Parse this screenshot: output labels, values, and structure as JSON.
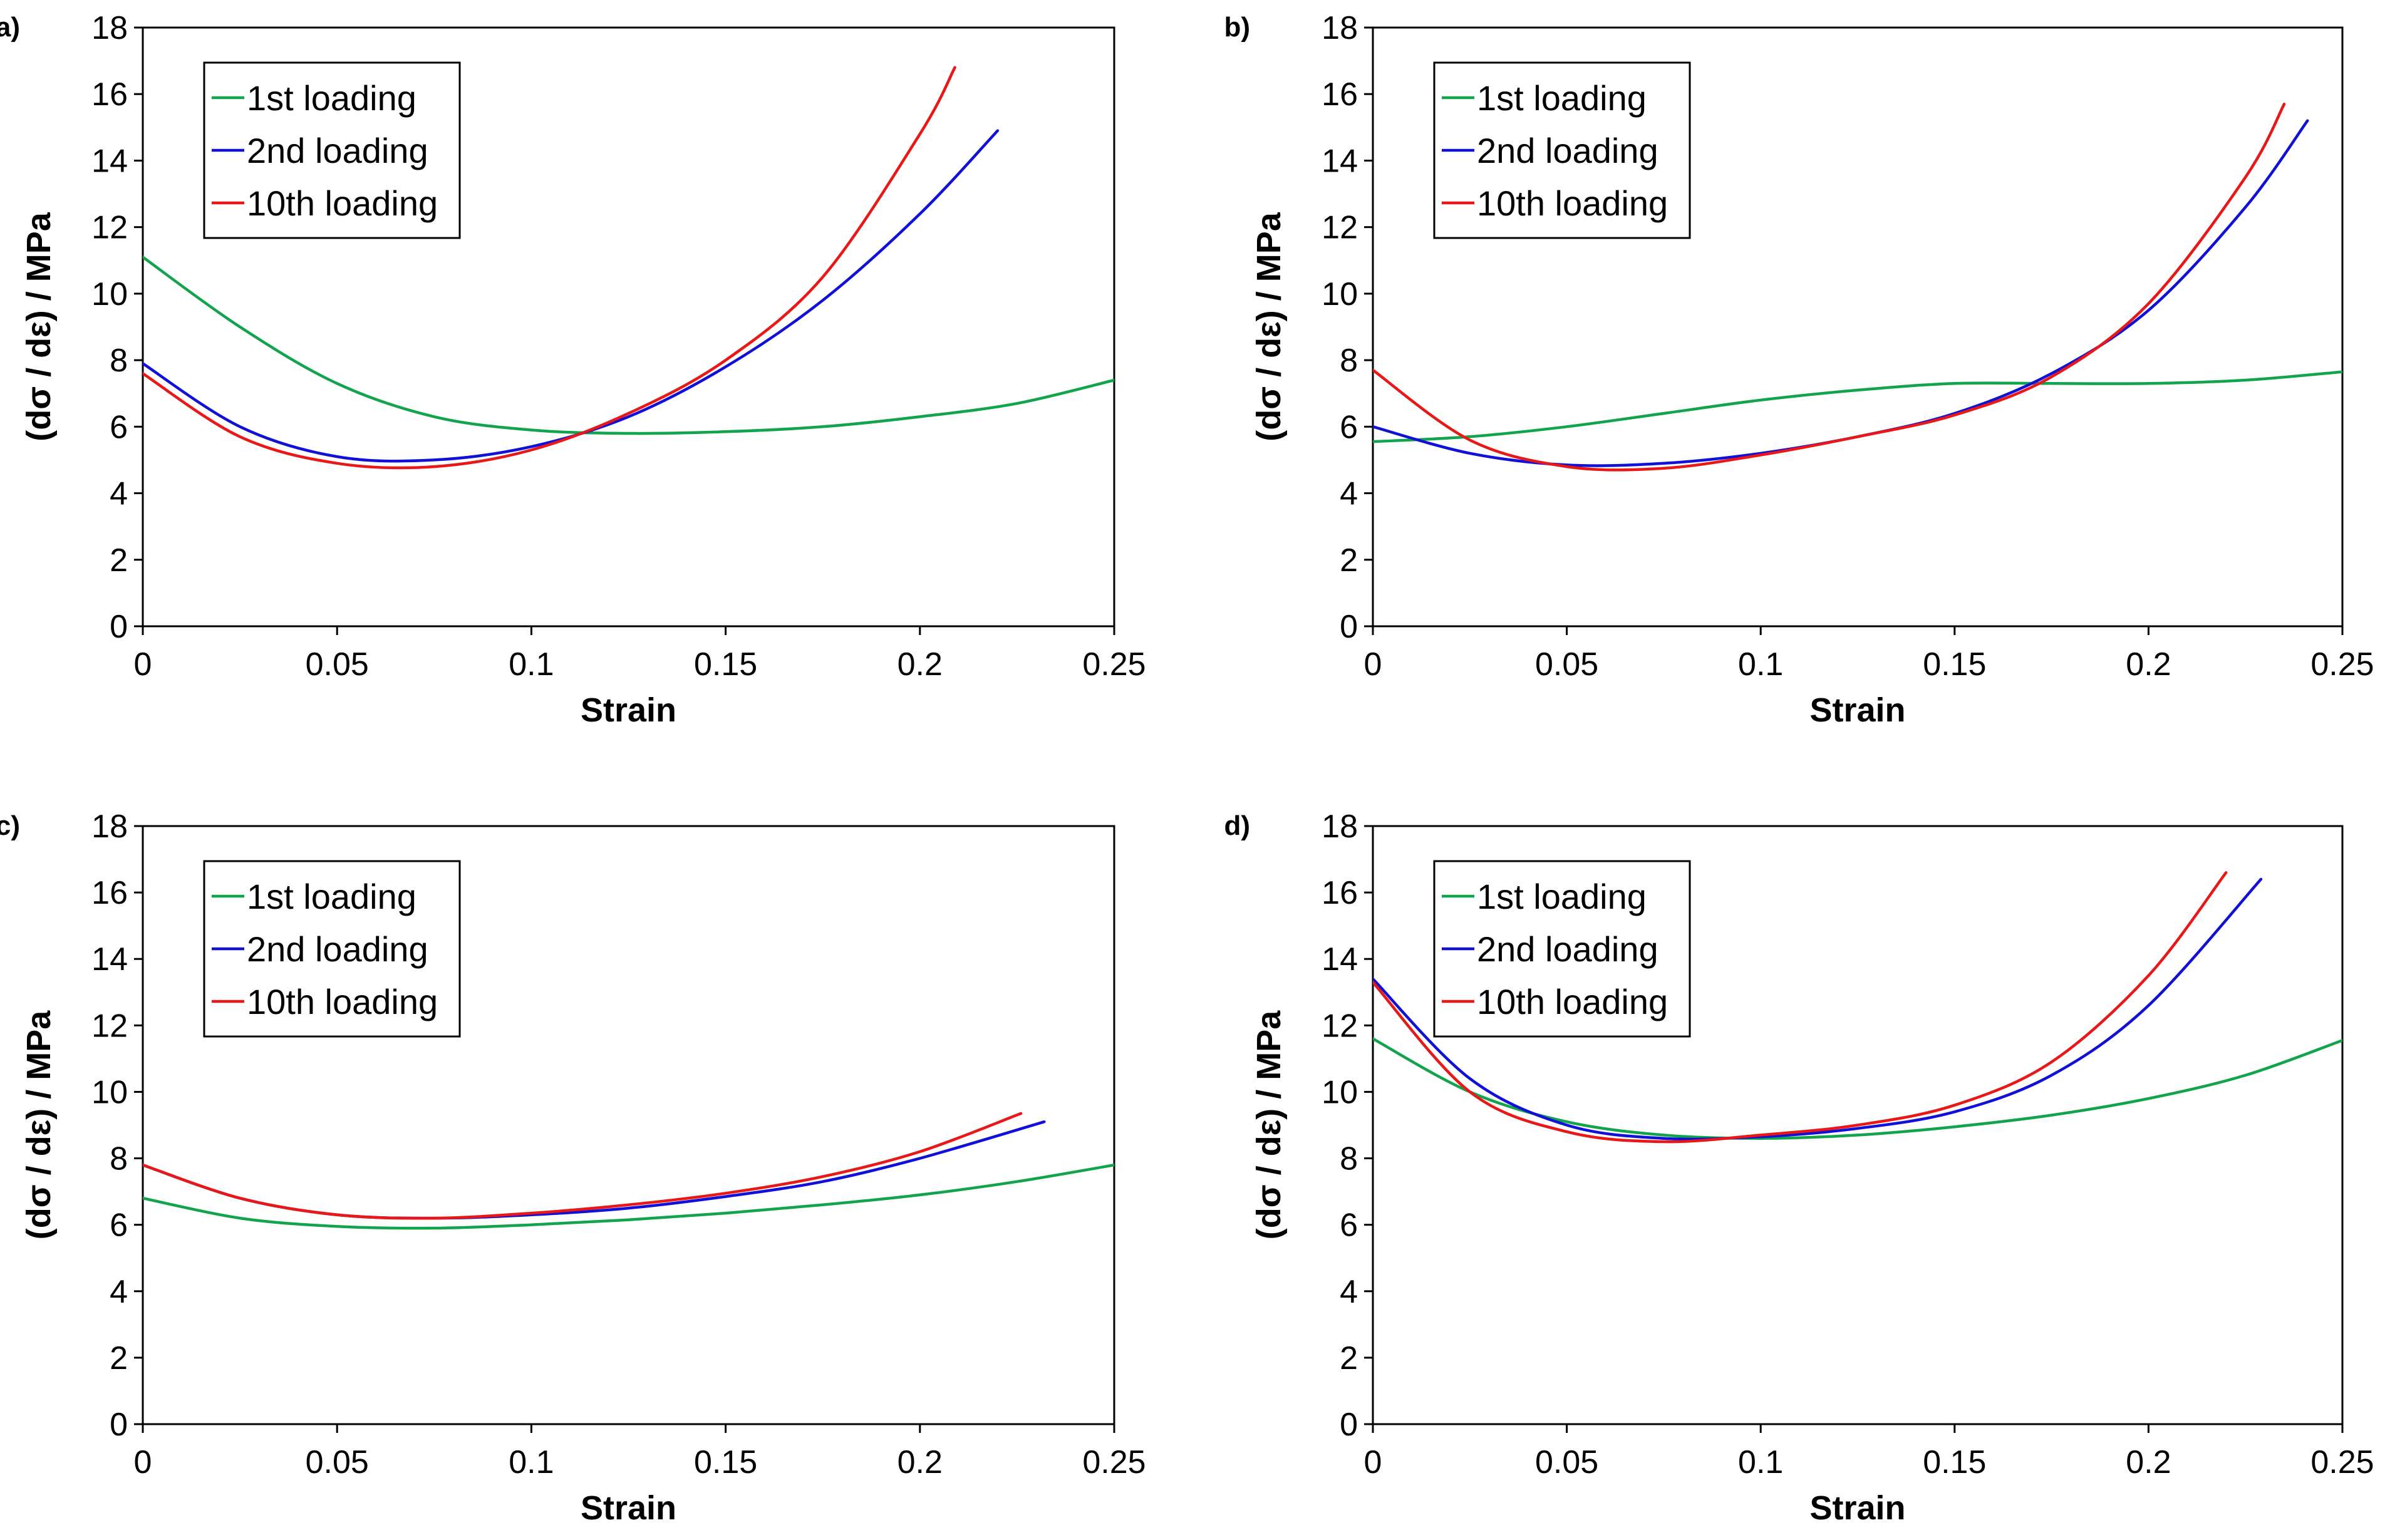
{
  "colors": {
    "first": "#12a44c",
    "second": "#1010d6",
    "tenth": "#e81818"
  },
  "chart_data": [
    {
      "type": "line",
      "panel_label": "a)",
      "xlabel": "Strain",
      "ylabel": "(dσ / dε) / MPa",
      "xlim": [
        0,
        0.25
      ],
      "ylim": [
        0,
        18
      ],
      "xticks": [
        "0",
        "0.05",
        "0.1",
        "0.15",
        "0.2",
        "0.25"
      ],
      "yticks": [
        "0",
        "2",
        "4",
        "6",
        "8",
        "10",
        "12",
        "14",
        "16",
        "18"
      ],
      "legend_position": "top-left",
      "grid": false,
      "series": [
        {
          "name": "1st loading",
          "color": "first",
          "x": [
            0,
            0.025,
            0.05,
            0.075,
            0.1,
            0.125,
            0.15,
            0.175,
            0.2,
            0.225,
            0.25
          ],
          "y": [
            11.1,
            9.0,
            7.3,
            6.3,
            5.9,
            5.8,
            5.85,
            6.0,
            6.3,
            6.7,
            7.4
          ]
        },
        {
          "name": "2nd loading",
          "color": "second",
          "x": [
            0,
            0.025,
            0.05,
            0.075,
            0.1,
            0.125,
            0.15,
            0.175,
            0.2,
            0.22
          ],
          "y": [
            7.9,
            6.0,
            5.1,
            5.0,
            5.4,
            6.3,
            7.8,
            9.8,
            12.4,
            14.9
          ]
        },
        {
          "name": "10th loading",
          "color": "tenth",
          "x": [
            0,
            0.025,
            0.05,
            0.075,
            0.1,
            0.125,
            0.15,
            0.175,
            0.2,
            0.209
          ],
          "y": [
            7.6,
            5.7,
            4.9,
            4.8,
            5.3,
            6.4,
            8.0,
            10.5,
            14.8,
            16.8
          ]
        }
      ]
    },
    {
      "type": "line",
      "panel_label": "b)",
      "xlabel": "Strain",
      "ylabel": "(dσ / dε) / MPa",
      "xlim": [
        0,
        0.25
      ],
      "ylim": [
        0,
        18
      ],
      "xticks": [
        "0",
        "0.05",
        "0.1",
        "0.15",
        "0.2",
        "0.25"
      ],
      "yticks": [
        "0",
        "2",
        "4",
        "6",
        "8",
        "10",
        "12",
        "14",
        "16",
        "18"
      ],
      "legend_position": "top-left",
      "grid": false,
      "series": [
        {
          "name": "1st loading",
          "color": "first",
          "x": [
            0,
            0.025,
            0.05,
            0.075,
            0.1,
            0.125,
            0.15,
            0.175,
            0.2,
            0.225,
            0.25
          ],
          "y": [
            5.55,
            5.7,
            6.0,
            6.4,
            6.8,
            7.1,
            7.3,
            7.3,
            7.3,
            7.4,
            7.65
          ]
        },
        {
          "name": "2nd loading",
          "color": "second",
          "x": [
            0,
            0.025,
            0.05,
            0.075,
            0.1,
            0.125,
            0.15,
            0.175,
            0.2,
            0.225,
            0.241
          ],
          "y": [
            6.0,
            5.2,
            4.85,
            4.9,
            5.2,
            5.7,
            6.4,
            7.6,
            9.5,
            12.6,
            15.2
          ]
        },
        {
          "name": "10th loading",
          "color": "tenth",
          "x": [
            0,
            0.025,
            0.05,
            0.075,
            0.1,
            0.125,
            0.15,
            0.175,
            0.2,
            0.225,
            0.235
          ],
          "y": [
            7.7,
            5.6,
            4.8,
            4.75,
            5.15,
            5.7,
            6.35,
            7.5,
            9.7,
            13.5,
            15.7
          ]
        }
      ]
    },
    {
      "type": "line",
      "panel_label": "c)",
      "xlabel": "Strain",
      "ylabel": "(dσ / dε) / MPa",
      "xlim": [
        0,
        0.25
      ],
      "ylim": [
        0,
        18
      ],
      "xticks": [
        "0",
        "0.05",
        "0.1",
        "0.15",
        "0.2",
        "0.25"
      ],
      "yticks": [
        "0",
        "2",
        "4",
        "6",
        "8",
        "10",
        "12",
        "14",
        "16",
        "18"
      ],
      "legend_position": "top-left",
      "grid": false,
      "series": [
        {
          "name": "1st loading",
          "color": "first",
          "x": [
            0,
            0.025,
            0.05,
            0.075,
            0.1,
            0.125,
            0.15,
            0.175,
            0.2,
            0.225,
            0.25
          ],
          "y": [
            6.8,
            6.2,
            5.95,
            5.9,
            6.0,
            6.15,
            6.35,
            6.6,
            6.9,
            7.3,
            7.8
          ]
        },
        {
          "name": "2nd loading",
          "color": "second",
          "x": [
            0,
            0.025,
            0.05,
            0.075,
            0.1,
            0.125,
            0.15,
            0.175,
            0.2,
            0.232
          ],
          "y": [
            7.8,
            6.8,
            6.3,
            6.2,
            6.3,
            6.5,
            6.85,
            7.3,
            8.0,
            9.1
          ]
        },
        {
          "name": "10th loading",
          "color": "tenth",
          "x": [
            0,
            0.025,
            0.05,
            0.075,
            0.1,
            0.125,
            0.15,
            0.175,
            0.2,
            0.226
          ],
          "y": [
            7.8,
            6.8,
            6.3,
            6.2,
            6.35,
            6.6,
            6.95,
            7.45,
            8.2,
            9.35
          ]
        }
      ]
    },
    {
      "type": "line",
      "panel_label": "d)",
      "xlabel": "Strain",
      "ylabel": "(dσ / dε) / MPa",
      "xlim": [
        0,
        0.25
      ],
      "ylim": [
        0,
        18
      ],
      "xticks": [
        "0",
        "0.05",
        "0.1",
        "0.15",
        "0.2",
        "0.25"
      ],
      "yticks": [
        "0",
        "2",
        "4",
        "6",
        "8",
        "10",
        "12",
        "14",
        "16",
        "18"
      ],
      "legend_position": "top-left",
      "grid": false,
      "series": [
        {
          "name": "1st loading",
          "color": "first",
          "x": [
            0,
            0.025,
            0.05,
            0.075,
            0.1,
            0.125,
            0.15,
            0.175,
            0.2,
            0.225,
            0.25
          ],
          "y": [
            11.6,
            10.0,
            9.1,
            8.7,
            8.6,
            8.7,
            8.95,
            9.3,
            9.8,
            10.5,
            11.55
          ]
        },
        {
          "name": "2nd loading",
          "color": "second",
          "x": [
            0,
            0.025,
            0.05,
            0.075,
            0.1,
            0.125,
            0.15,
            0.175,
            0.2,
            0.229
          ],
          "y": [
            13.4,
            10.4,
            9.0,
            8.6,
            8.65,
            8.9,
            9.4,
            10.5,
            12.6,
            16.4
          ]
        },
        {
          "name": "10th loading",
          "color": "tenth",
          "x": [
            0,
            0.025,
            0.05,
            0.075,
            0.1,
            0.125,
            0.15,
            0.175,
            0.2,
            0.22
          ],
          "y": [
            13.3,
            10.0,
            8.8,
            8.5,
            8.7,
            9.0,
            9.6,
            10.9,
            13.5,
            16.6
          ]
        }
      ]
    }
  ]
}
